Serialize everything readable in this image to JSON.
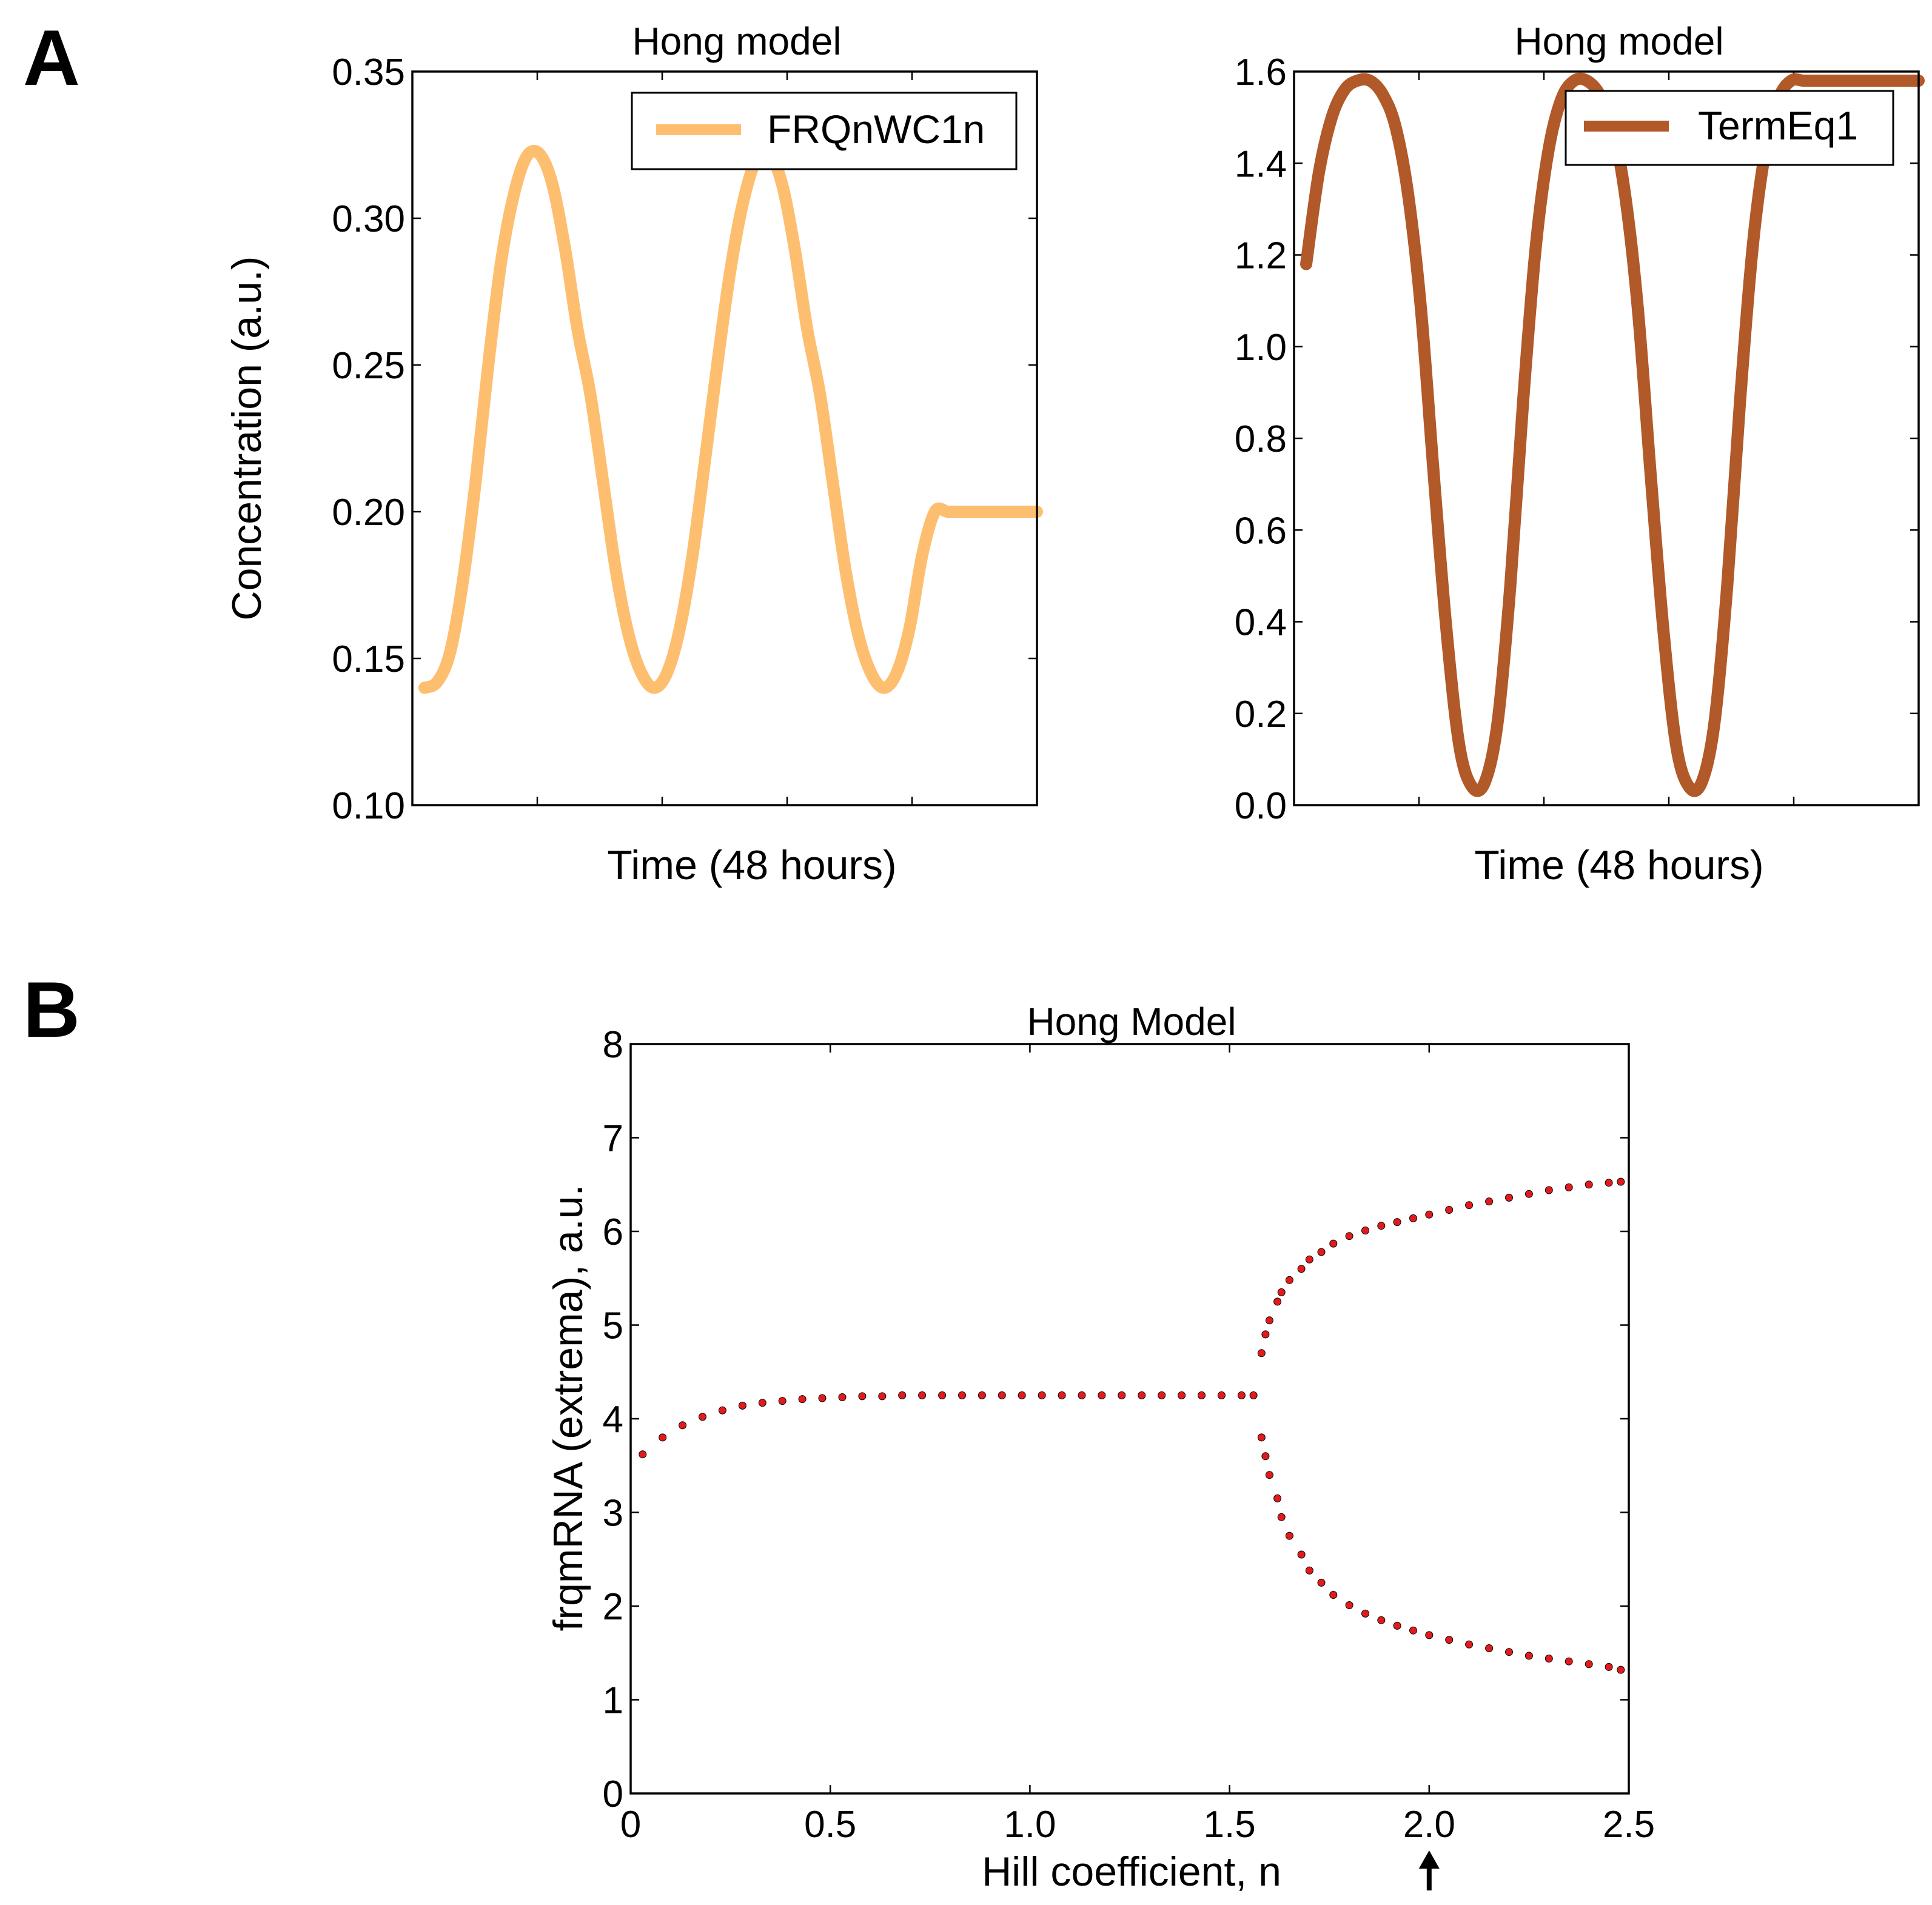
{
  "figure": {
    "panel_a_label": "A",
    "panel_b_label": "B"
  },
  "chart_data": [
    {
      "type": "line",
      "title": "Hong model",
      "xlabel": "Time (48 hours)",
      "ylabel": "Concentration (a.u.)",
      "ylim": [
        0.1,
        0.35
      ],
      "yticks": [
        "0.35",
        "0.30",
        "0.25",
        "0.20",
        "0.15",
        "0.10"
      ],
      "xticks_labeled": false,
      "legend": {
        "placement": "top-right"
      },
      "series": [
        {
          "name": "FRQnWC1n",
          "color": "#fdbf6f",
          "x": [
            0,
            1,
            2,
            3,
            4,
            5,
            6,
            7,
            8,
            9,
            10,
            11,
            12,
            13,
            14,
            15,
            16,
            17,
            18,
            19,
            20,
            21,
            22,
            23,
            24,
            25,
            26,
            27,
            28,
            29,
            30,
            31,
            32,
            33,
            34,
            35,
            36,
            37,
            38,
            39,
            40,
            41,
            42,
            43,
            44,
            45,
            46,
            47,
            48
          ],
          "y": [
            0.14,
            0.142,
            0.152,
            0.176,
            0.21,
            0.25,
            0.285,
            0.308,
            0.321,
            0.322,
            0.312,
            0.29,
            0.262,
            0.24,
            0.21,
            0.18,
            0.158,
            0.145,
            0.14,
            0.145,
            0.16,
            0.185,
            0.218,
            0.252,
            0.283,
            0.306,
            0.32,
            0.322,
            0.312,
            0.29,
            0.262,
            0.24,
            0.21,
            0.18,
            0.158,
            0.145,
            0.14,
            0.145,
            0.16,
            0.185,
            0.2,
            0.2,
            0.2,
            0.2,
            0.2,
            0.2,
            0.2,
            0.2,
            0.2
          ]
        }
      ]
    },
    {
      "type": "line",
      "title": "Hong model",
      "xlabel": "Time (48 hours)",
      "ylabel": "",
      "ylim": [
        0.0,
        1.6
      ],
      "yticks": [
        "1.6",
        "1.4",
        "1.2",
        "1.0",
        "0.8",
        "0.6",
        "0.4",
        "0.2",
        "0.0"
      ],
      "xticks_labeled": false,
      "legend": {
        "placement": "top-right"
      },
      "series": [
        {
          "name": "TermEq1",
          "color": "#b15928",
          "x": [
            0,
            1,
            2,
            3,
            4,
            5,
            6,
            7,
            8,
            9,
            10,
            11,
            12,
            13,
            14,
            15,
            16,
            17,
            18,
            19,
            20,
            21,
            22,
            23,
            24,
            25,
            26,
            27,
            28,
            29,
            30,
            31,
            32,
            33,
            34,
            35,
            36,
            37,
            38,
            39,
            40,
            41,
            42,
            43,
            44,
            45,
            46,
            47,
            48
          ],
          "y": [
            1.18,
            1.38,
            1.5,
            1.56,
            1.58,
            1.58,
            1.55,
            1.48,
            1.33,
            1.08,
            0.72,
            0.38,
            0.13,
            0.04,
            0.05,
            0.18,
            0.48,
            0.88,
            1.22,
            1.43,
            1.54,
            1.58,
            1.58,
            1.55,
            1.48,
            1.33,
            1.08,
            0.72,
            0.38,
            0.13,
            0.04,
            0.05,
            0.18,
            0.48,
            0.88,
            1.22,
            1.43,
            1.54,
            1.58,
            1.58,
            1.58,
            1.58,
            1.58,
            1.58,
            1.58,
            1.58,
            1.58,
            1.58,
            1.58
          ]
        }
      ]
    },
    {
      "type": "scatter",
      "title": "Hong Model",
      "xlabel": "Hill coefficient, n",
      "ylabel": "frqmRNA (extrema), a.u.",
      "xlim": [
        0,
        2.5
      ],
      "ylim": [
        0,
        8
      ],
      "xticks": [
        "0",
        "0.5",
        "1.0",
        "1.5",
        "2.0",
        "2.5"
      ],
      "yticks": [
        "0",
        "1",
        "2",
        "3",
        "4",
        "5",
        "6",
        "7",
        "8"
      ],
      "annotation": {
        "type": "arrow",
        "x": 2.0,
        "label": ""
      },
      "series": [
        {
          "color": "#e31a1c",
          "x": [
            0.03,
            0.08,
            0.13,
            0.18,
            0.23,
            0.28,
            0.33,
            0.38,
            0.43,
            0.48,
            0.53,
            0.58,
            0.63,
            0.68,
            0.73,
            0.78,
            0.83,
            0.88,
            0.93,
            0.98,
            1.03,
            1.08,
            1.13,
            1.18,
            1.23,
            1.28,
            1.33,
            1.38,
            1.43,
            1.48,
            1.53,
            1.56,
            1.58,
            1.59,
            1.6,
            1.62,
            1.63,
            1.65,
            1.68,
            1.7,
            1.73,
            1.76,
            1.8,
            1.84,
            1.88,
            1.92,
            1.96,
            2.0,
            2.05,
            2.1,
            2.15,
            2.2,
            2.25,
            2.3,
            2.35,
            2.4,
            2.45,
            2.48
          ],
          "y": [
            3.62,
            3.8,
            3.93,
            4.02,
            4.09,
            4.14,
            4.17,
            4.19,
            4.21,
            4.22,
            4.23,
            4.24,
            4.24,
            4.25,
            4.25,
            4.25,
            4.25,
            4.25,
            4.25,
            4.25,
            4.25,
            4.25,
            4.25,
            4.25,
            4.25,
            4.25,
            4.25,
            4.25,
            4.25,
            4.25,
            4.25,
            4.25,
            4.7,
            4.9,
            5.05,
            5.25,
            5.35,
            5.48,
            5.6,
            5.7,
            5.78,
            5.87,
            5.95,
            6.01,
            6.06,
            6.1,
            6.14,
            6.18,
            6.23,
            6.28,
            6.32,
            6.36,
            6.4,
            6.44,
            6.47,
            6.5,
            6.52,
            6.53
          ]
        },
        {
          "color": "#e31a1c",
          "x": [
            1.58,
            1.59,
            1.6,
            1.62,
            1.63,
            1.65,
            1.68,
            1.7,
            1.73,
            1.76,
            1.8,
            1.84,
            1.88,
            1.92,
            1.96,
            2.0,
            2.05,
            2.1,
            2.15,
            2.2,
            2.25,
            2.3,
            2.35,
            2.4,
            2.45,
            2.48
          ],
          "y": [
            3.8,
            3.6,
            3.4,
            3.15,
            2.95,
            2.75,
            2.55,
            2.38,
            2.25,
            2.12,
            2.01,
            1.92,
            1.85,
            1.79,
            1.74,
            1.69,
            1.64,
            1.59,
            1.55,
            1.51,
            1.47,
            1.44,
            1.41,
            1.38,
            1.35,
            1.32
          ]
        }
      ]
    }
  ]
}
